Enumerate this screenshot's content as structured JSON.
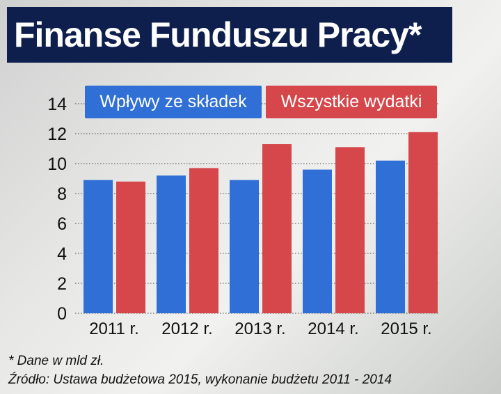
{
  "title": "Finanse Funduszu Pracy*",
  "chart_data": {
    "type": "bar",
    "categories": [
      "2011 r.",
      "2012 r.",
      "2013 r.",
      "2014 r.",
      "2015 r."
    ],
    "series": [
      {
        "name": "Wpływy ze składek",
        "color": "#2f6fd6",
        "values": [
          8.9,
          9.2,
          8.9,
          9.6,
          10.2
        ]
      },
      {
        "name": "Wszystkie wydatki",
        "color": "#d5474b",
        "values": [
          8.8,
          9.7,
          11.3,
          11.1,
          12.1
        ]
      }
    ],
    "ylim": [
      0,
      14
    ],
    "yticks": [
      0,
      2,
      4,
      6,
      8,
      10,
      12,
      14
    ],
    "grid": true,
    "legend": "top"
  },
  "footnote": "* Dane w mld zł.",
  "source": "Źródło: Ustawa budżetowa 2015, wykonanie budżetu 2011 - 2014"
}
